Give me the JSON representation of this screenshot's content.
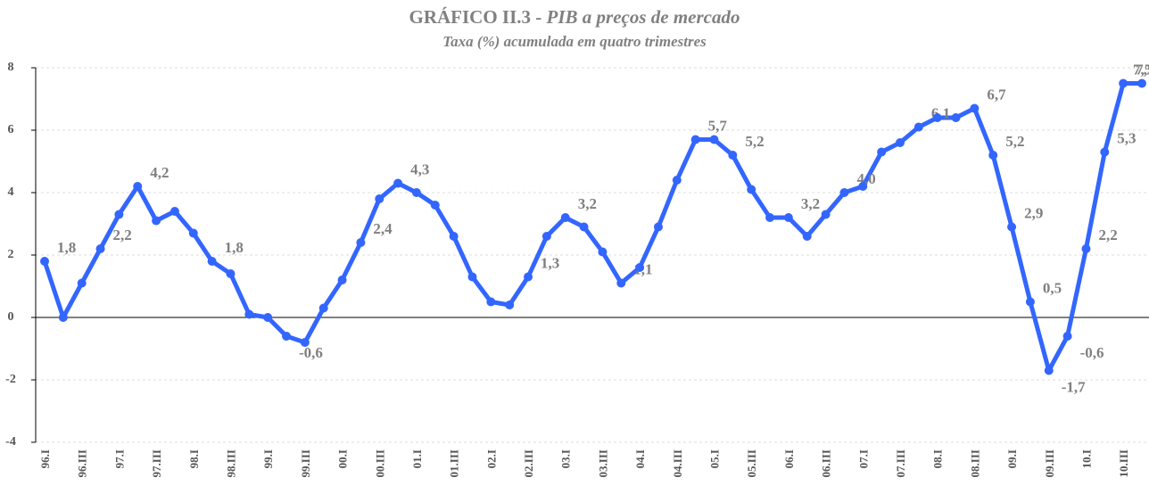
{
  "chart_data": {
    "type": "line",
    "title": "GRÁFICO II.3 -",
    "title_italic": "PIB a preços de mercado",
    "subtitle": "Taxa (%) acumulada em quatro trimestres",
    "categories": [
      "96.I",
      null,
      "96.III",
      null,
      "97.I",
      null,
      "97.III",
      null,
      "98.I",
      null,
      "98.III",
      null,
      "99.I",
      null,
      "99.III",
      null,
      "00.I",
      null,
      "00.III",
      null,
      "01.I",
      null,
      "01.III",
      null,
      "02.I",
      null,
      "02.III",
      null,
      "03.I",
      null,
      "03.III",
      null,
      "04.I",
      null,
      "04.III",
      null,
      "05.I",
      null,
      "05.III",
      null,
      "06.I",
      null,
      "06.III",
      null,
      "07.I",
      null,
      "07.III",
      null,
      "08.I",
      null,
      "08.III",
      null,
      "09.I",
      null,
      "09.III",
      null,
      "10.I",
      null,
      "10.III",
      null
    ],
    "series": [
      {
        "color": "#3366ff",
        "values": [
          1.8,
          0.0,
          1.1,
          2.2,
          3.3,
          4.2,
          3.1,
          3.4,
          2.7,
          1.8,
          1.4,
          0.1,
          0.0,
          -0.6,
          -0.8,
          0.3,
          1.2,
          2.4,
          3.8,
          4.3,
          4.0,
          3.6,
          2.6,
          1.3,
          0.5,
          0.4,
          1.3,
          2.6,
          3.2,
          2.9,
          2.1,
          1.1,
          1.6,
          2.9,
          4.4,
          5.7,
          5.7,
          5.2,
          4.1,
          3.2,
          3.2,
          2.6,
          3.3,
          4.0,
          4.2,
          5.3,
          5.6,
          6.1,
          6.4,
          6.4,
          6.7,
          5.2,
          2.9,
          0.5,
          -1.7,
          -0.6,
          2.2,
          5.3,
          7.5,
          7.5
        ],
        "value_labels": [
          "1,8",
          null,
          null,
          "2,2",
          null,
          "4,2",
          null,
          null,
          null,
          "1,8",
          null,
          null,
          null,
          "-0,6",
          null,
          null,
          null,
          "2,4",
          null,
          "4,3",
          null,
          null,
          null,
          null,
          null,
          null,
          "1,3",
          null,
          "3,2",
          null,
          null,
          "1,1",
          null,
          null,
          null,
          "5,7",
          null,
          "5,2",
          null,
          null,
          "3,2",
          null,
          null,
          "4,0",
          null,
          null,
          null,
          "6,1",
          null,
          null,
          "6,7",
          "5,2",
          "2,9",
          "0,5",
          "-1,7",
          "-0,6",
          "2,2",
          "5,3",
          "7,5",
          "7,5"
        ]
      }
    ],
    "ylim": [
      -4,
      8
    ],
    "yticks": [
      -4,
      -2,
      0,
      2,
      4,
      6,
      8
    ],
    "grid": true
  }
}
